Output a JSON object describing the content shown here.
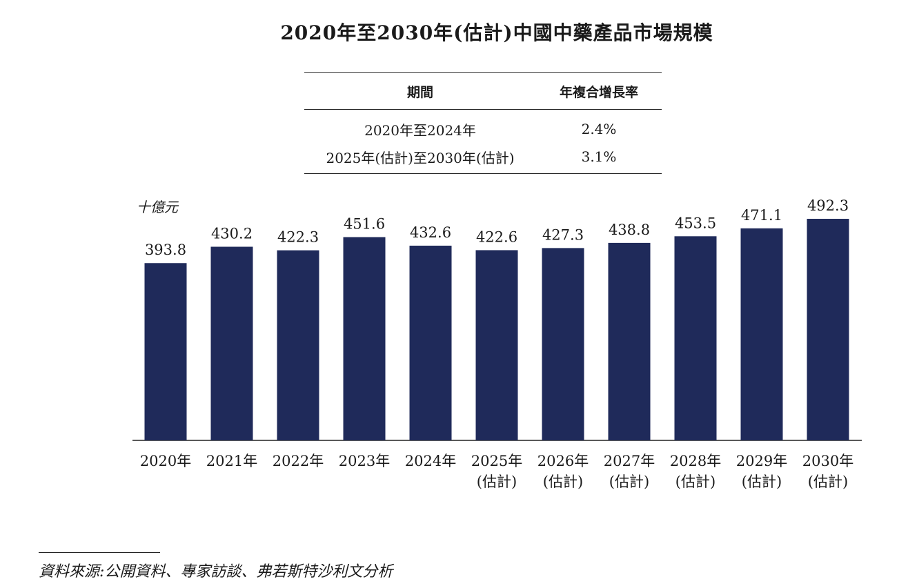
{
  "title": "2020年至2030年(估計)中國中藥產品市場規模",
  "cagr_table": {
    "headers": {
      "period": "期間",
      "cagr": "年複合增長率"
    },
    "rows": [
      {
        "period": "2020年至2024年",
        "cagr": "2.4%"
      },
      {
        "period": "2025年(估計)至2030年(估計)",
        "cagr": "3.1%"
      }
    ]
  },
  "chart_data": {
    "type": "bar",
    "unit_label": "十億元",
    "categories": [
      [
        "2020年"
      ],
      [
        "2021年"
      ],
      [
        "2022年"
      ],
      [
        "2023年"
      ],
      [
        "2024年"
      ],
      [
        "2025年",
        "(估計)"
      ],
      [
        "2026年",
        "(估計)"
      ],
      [
        "2027年",
        "(估計)"
      ],
      [
        "2028年",
        "(估計)"
      ],
      [
        "2029年",
        "(估計)"
      ],
      [
        "2030年",
        "(估計)"
      ]
    ],
    "values": [
      393.8,
      430.2,
      422.3,
      451.6,
      432.6,
      422.6,
      427.3,
      438.8,
      453.5,
      471.1,
      492.3
    ],
    "value_labels": [
      "393.8",
      "430.2",
      "422.3",
      "451.6",
      "432.6",
      "422.6",
      "427.3",
      "438.8",
      "453.5",
      "471.1",
      "492.3"
    ],
    "bar_color": "#1f2a5a",
    "ylim": [
      0,
      492.3
    ],
    "grid": false
  },
  "source": "資料來源:公開資料、專家訪談、弗若斯特沙利文分析"
}
